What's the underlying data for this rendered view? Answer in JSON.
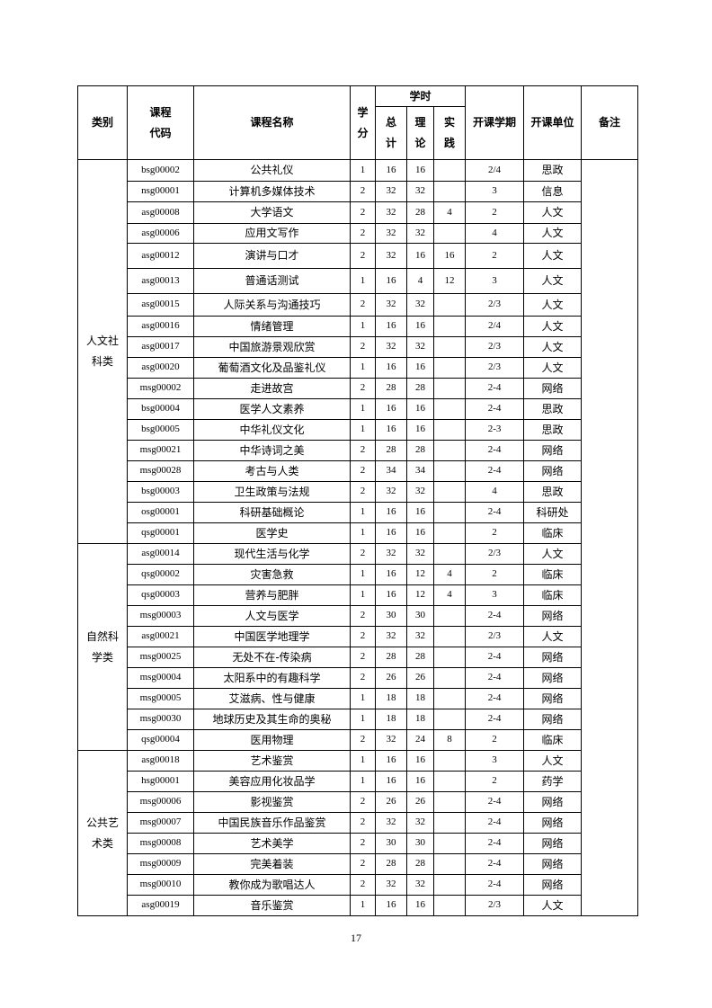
{
  "header": {
    "category": "类别",
    "code": "课程代码",
    "code_lines": [
      "课程",
      "代码"
    ],
    "name": "课程名称",
    "credit_lines": [
      "学",
      "分"
    ],
    "hours": "学时",
    "total_lines": [
      "总",
      "计"
    ],
    "theory_lines": [
      "理",
      "论"
    ],
    "practice_lines": [
      "实",
      "践"
    ],
    "semester": "开课学期",
    "unit": "开课单位",
    "remarks": "备注"
  },
  "categories": [
    {
      "label_lines": [
        "人文社",
        "科类"
      ],
      "rows": [
        [
          "bsg00002",
          "公共礼仪",
          "1",
          "16",
          "16",
          "",
          "2/4",
          "思政"
        ],
        [
          "nsg00001",
          "计算机多媒体技术",
          "2",
          "32",
          "32",
          "",
          "3",
          "信息"
        ],
        [
          "asg00008",
          "大学语文",
          "2",
          "32",
          "28",
          "4",
          "2",
          "人文"
        ],
        [
          "asg00006",
          "应用文写作",
          "2",
          "32",
          "32",
          "",
          "4",
          "人文"
        ],
        [
          "asg00012",
          "演讲与口才",
          "2",
          "32",
          "16",
          "16",
          "2",
          "人文"
        ],
        [
          "asg00013",
          "普通话测试",
          "1",
          "16",
          "4",
          "12",
          "3",
          "人文"
        ],
        [
          "asg00015",
          "人际关系与沟通技巧",
          "2",
          "32",
          "32",
          "",
          "2/3",
          "人文"
        ],
        [
          "asg00016",
          "情绪管理",
          "1",
          "16",
          "16",
          "",
          "2/4",
          "人文"
        ],
        [
          "asg00017",
          "中国旅游景观欣赏",
          "2",
          "32",
          "32",
          "",
          "2/3",
          "人文"
        ],
        [
          "asg00020",
          "葡萄酒文化及品鉴礼仪",
          "1",
          "16",
          "16",
          "",
          "2/3",
          "人文"
        ],
        [
          "msg00002",
          "走进故宫",
          "2",
          "28",
          "28",
          "",
          "2-4",
          "网络"
        ],
        [
          "bsg00004",
          "医学人文素养",
          "1",
          "16",
          "16",
          "",
          "2-4",
          "思政"
        ],
        [
          "bsg00005",
          "中华礼仪文化",
          "1",
          "16",
          "16",
          "",
          "2-3",
          "思政"
        ],
        [
          "msg00021",
          "中华诗词之美",
          "2",
          "28",
          "28",
          "",
          "2-4",
          "网络"
        ],
        [
          "msg00028",
          "考古与人类",
          "2",
          "34",
          "34",
          "",
          "2-4",
          "网络"
        ],
        [
          "bsg00003",
          "卫生政策与法规",
          "2",
          "32",
          "32",
          "",
          "4",
          "思政"
        ],
        [
          "osg00001",
          "科研基础概论",
          "1",
          "16",
          "16",
          "",
          "2-4",
          "科研处"
        ],
        [
          "qsg00001",
          "医学史",
          "1",
          "16",
          "16",
          "",
          "2",
          "临床"
        ]
      ]
    },
    {
      "label_lines": [
        "自然科",
        "学类"
      ],
      "rows": [
        [
          "asg00014",
          "现代生活与化学",
          "2",
          "32",
          "32",
          "",
          "2/3",
          "人文"
        ],
        [
          "qsg00002",
          "灾害急救",
          "1",
          "16",
          "12",
          "4",
          "2",
          "临床"
        ],
        [
          "qsg00003",
          "营养与肥胖",
          "1",
          "16",
          "12",
          "4",
          "3",
          "临床"
        ],
        [
          "msg00003",
          "人文与医学",
          "2",
          "30",
          "30",
          "",
          "2-4",
          "网络"
        ],
        [
          "asg00021",
          "中国医学地理学",
          "2",
          "32",
          "32",
          "",
          "2/3",
          "人文"
        ],
        [
          "msg00025",
          "无处不在-传染病",
          "2",
          "28",
          "28",
          "",
          "2-4",
          "网络"
        ],
        [
          "msg00004",
          "太阳系中的有趣科学",
          "2",
          "26",
          "26",
          "",
          "2-4",
          "网络"
        ],
        [
          "msg00005",
          "艾滋病、性与健康",
          "1",
          "18",
          "18",
          "",
          "2-4",
          "网络"
        ],
        [
          "msg00030",
          "地球历史及其生命的奥秘",
          "1",
          "18",
          "18",
          "",
          "2-4",
          "网络"
        ],
        [
          "qsg00004",
          "医用物理",
          "2",
          "32",
          "24",
          "8",
          "2",
          "临床"
        ]
      ]
    },
    {
      "label_lines": [
        "公共艺",
        "术类"
      ],
      "rows": [
        [
          "asg00018",
          "艺术鉴赏",
          "1",
          "16",
          "16",
          "",
          "3",
          "人文"
        ],
        [
          "hsg00001",
          "美容应用化妆品学",
          "1",
          "16",
          "16",
          "",
          "2",
          "药学"
        ],
        [
          "msg00006",
          "影视鉴赏",
          "2",
          "26",
          "26",
          "",
          "2-4",
          "网络"
        ],
        [
          "msg00007",
          "中国民族音乐作品鉴赏",
          "2",
          "32",
          "32",
          "",
          "2-4",
          "网络"
        ],
        [
          "msg00008",
          "艺术美学",
          "2",
          "30",
          "30",
          "",
          "2-4",
          "网络"
        ],
        [
          "msg00009",
          "完美着装",
          "2",
          "28",
          "28",
          "",
          "2-4",
          "网络"
        ],
        [
          "msg00010",
          "教你成为歌唱达人",
          "2",
          "32",
          "32",
          "",
          "2-4",
          "网络"
        ],
        [
          "asg00019",
          "音乐鉴赏",
          "1",
          "16",
          "16",
          "",
          "2/3",
          "人文"
        ]
      ]
    }
  ],
  "remarks_value": "",
  "page_number": "17"
}
